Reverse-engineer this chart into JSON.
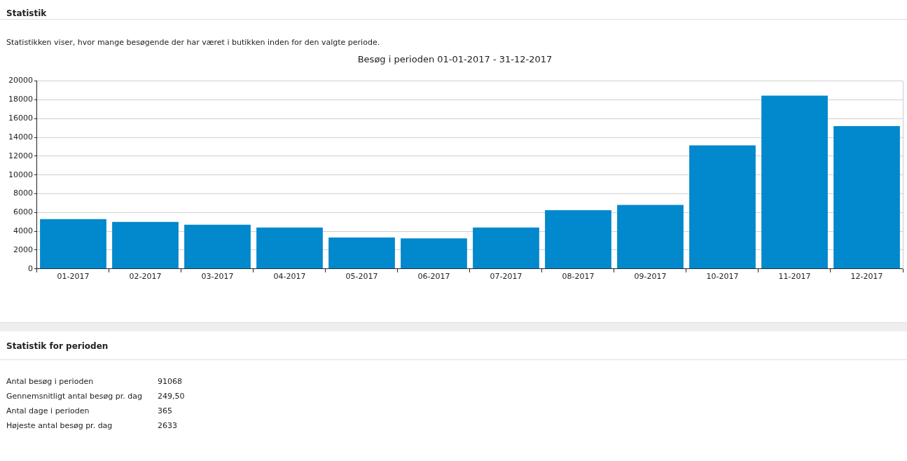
{
  "chart_data": {
    "type": "bar",
    "title": "Besøg i perioden 01-01-2017 - 31-12-2017",
    "categories": [
      "01-2017",
      "02-2017",
      "03-2017",
      "04-2017",
      "05-2017",
      "06-2017",
      "07-2017",
      "08-2017",
      "09-2017",
      "10-2017",
      "11-2017",
      "12-2017"
    ],
    "values": [
      5300,
      5000,
      4700,
      4400,
      3350,
      3250,
      4400,
      6250,
      6800,
      13150,
      18450,
      15200
    ],
    "color": "#0288cc",
    "ylim": [
      0,
      20000
    ],
    "yticks": [
      0,
      2000,
      4000,
      6000,
      8000,
      10000,
      12000,
      14000,
      16000,
      18000,
      20000
    ],
    "grid": "y",
    "legend": false,
    "annotations": [
      "Statistik",
      "Statistikken viser, hvor mange besøgende der har været i butikken inden for den valgte periode.",
      "Statistik for perioden",
      "Antal besøg i perioden",
      "91068",
      "Gennemsnitligt antal besøg pr. dag",
      "249,50",
      "Antal dage i perioden",
      "365",
      "Højeste antal besøg pr. dag",
      "2633"
    ]
  }
}
